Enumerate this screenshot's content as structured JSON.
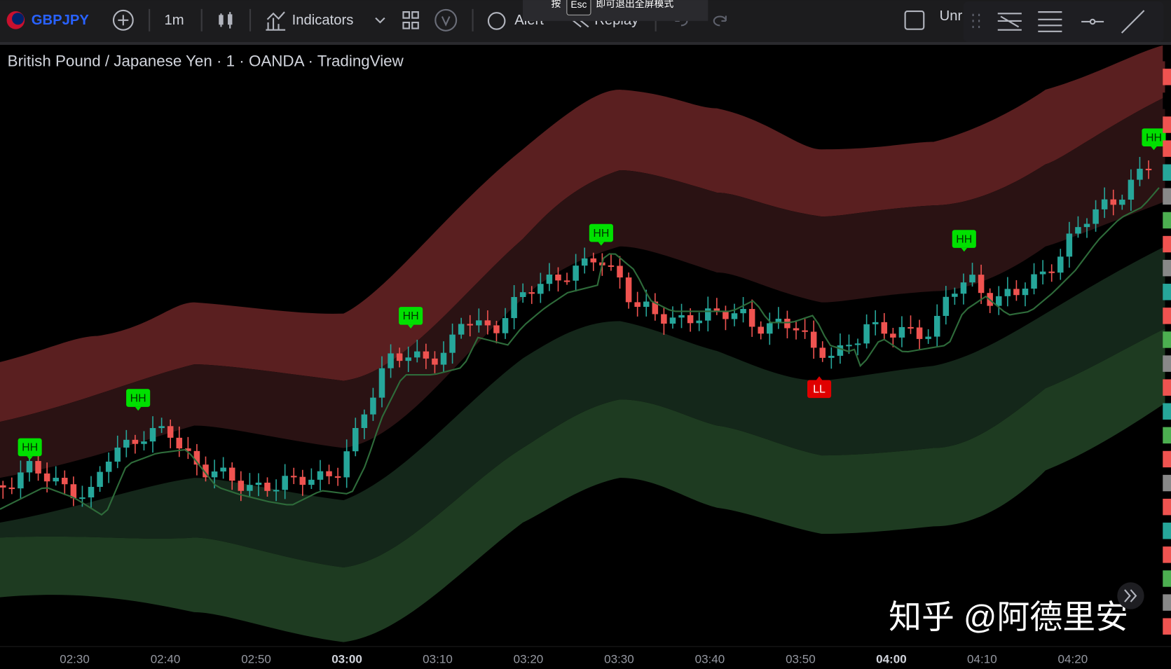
{
  "toolbar": {
    "symbol": "GBPJPY",
    "interval": "1m",
    "indicators": "Indicators",
    "alert": "Alert",
    "replay": "Replay",
    "unnamed": "Unr"
  },
  "esc_hint": {
    "press": "按",
    "key": "Esc",
    "message": "即可退出全屏模式"
  },
  "chart": {
    "title": "British Pound / Japanese Yen · 1 · OANDA · TradingView",
    "markers": [
      "HH",
      "HH",
      "HH",
      "HH",
      "LL",
      "HH",
      "HH"
    ],
    "time_labels": [
      {
        "text": "02:30",
        "bold": false
      },
      {
        "text": "02:40",
        "bold": false
      },
      {
        "text": "02:50",
        "bold": false
      },
      {
        "text": "03:00",
        "bold": true
      },
      {
        "text": "03:10",
        "bold": false
      },
      {
        "text": "03:20",
        "bold": false
      },
      {
        "text": "03:30",
        "bold": false
      },
      {
        "text": "03:40",
        "bold": false
      },
      {
        "text": "03:50",
        "bold": false
      },
      {
        "text": "04:00",
        "bold": true
      },
      {
        "text": "04:10",
        "bold": false
      },
      {
        "text": "04:20",
        "bold": false
      }
    ]
  },
  "watermark": "知乎 @阿德里安"
}
